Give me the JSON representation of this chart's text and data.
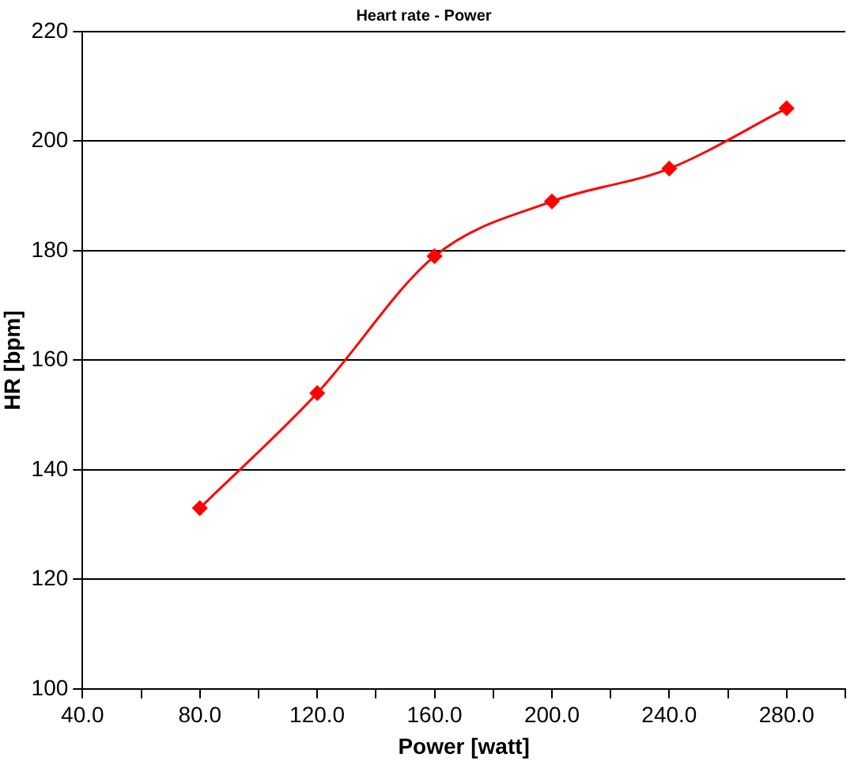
{
  "chart_data": {
    "type": "line",
    "title": "Heart rate - Power",
    "xlabel": "Power [watt]",
    "ylabel": "HR [bpm]",
    "x": [
      80,
      120,
      160,
      200,
      240,
      280
    ],
    "series": [
      {
        "color": "#ff0000",
        "values": [
          133,
          154,
          179,
          189,
          195,
          206
        ]
      }
    ],
    "xlim": [
      40,
      300
    ],
    "xticks": [
      {
        "value": 40,
        "label": "40.0"
      },
      {
        "value": 60,
        "label": null
      },
      {
        "value": 80,
        "label": "80.0"
      },
      {
        "value": 100,
        "label": null
      },
      {
        "value": 120,
        "label": "120.0"
      },
      {
        "value": 140,
        "label": null
      },
      {
        "value": 160,
        "label": "160.0"
      },
      {
        "value": 180,
        "label": null
      },
      {
        "value": 200,
        "label": "200.0"
      },
      {
        "value": 220,
        "label": null
      },
      {
        "value": 240,
        "label": "240.0"
      },
      {
        "value": 260,
        "label": null
      },
      {
        "value": 280,
        "label": "280.0"
      },
      {
        "value": 300,
        "label": null
      }
    ],
    "ylim": [
      100,
      220
    ],
    "yticks": [
      100,
      120,
      140,
      160,
      180,
      200,
      220
    ],
    "grid": "y",
    "legend": false,
    "marker": "diamond",
    "line_style": "solid"
  }
}
